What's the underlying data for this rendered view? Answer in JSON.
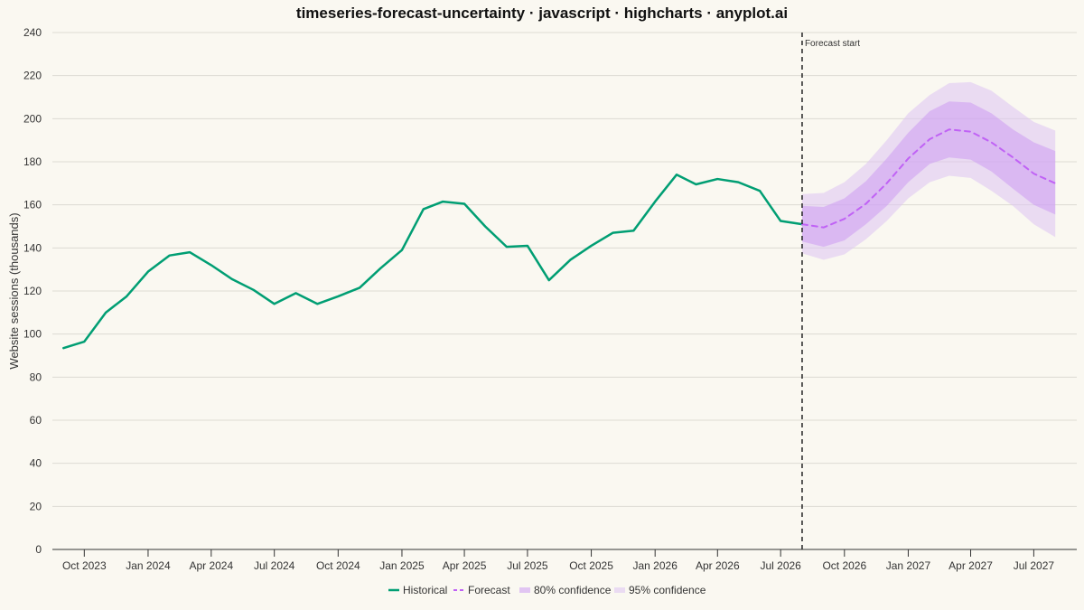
{
  "chart_data": {
    "type": "line",
    "title": "timeseries-forecast-uncertainty · javascript · highcharts · anyplot.ai",
    "ylabel": "Website sessions (thousands)",
    "xlabel": "",
    "ylim": [
      0,
      240
    ],
    "yticks": [
      0,
      20,
      40,
      60,
      80,
      100,
      120,
      140,
      160,
      180,
      200,
      220,
      240
    ],
    "x_start": "2023-09",
    "xlim": [
      "2023-08-16",
      "2027-09-01"
    ],
    "x_ticks": [
      {
        "date": "2023-10-01",
        "label": "Oct 2023"
      },
      {
        "date": "2024-01-01",
        "label": "Jan 2024"
      },
      {
        "date": "2024-04-01",
        "label": "Apr 2024"
      },
      {
        "date": "2024-07-01",
        "label": "Jul 2024"
      },
      {
        "date": "2024-10-01",
        "label": "Oct 2024"
      },
      {
        "date": "2025-01-01",
        "label": "Jan 2025"
      },
      {
        "date": "2025-04-01",
        "label": "Apr 2025"
      },
      {
        "date": "2025-07-01",
        "label": "Jul 2025"
      },
      {
        "date": "2025-10-01",
        "label": "Oct 2025"
      },
      {
        "date": "2026-01-01",
        "label": "Jan 2026"
      },
      {
        "date": "2026-04-01",
        "label": "Apr 2026"
      },
      {
        "date": "2026-07-01",
        "label": "Jul 2026"
      },
      {
        "date": "2026-10-01",
        "label": "Oct 2026"
      },
      {
        "date": "2027-01-01",
        "label": "Jan 2027"
      },
      {
        "date": "2027-04-01",
        "label": "Apr 2027"
      },
      {
        "date": "2027-07-01",
        "label": "Jul 2027"
      }
    ],
    "forecast_start": {
      "date": "2026-08-01",
      "label": "Forecast start"
    },
    "grid": true,
    "legend_position": "bottom-center",
    "series": [
      {
        "name": "Historical",
        "kind": "line",
        "color": "#009E73",
        "points": [
          [
            "2023-09-01",
            93.5
          ],
          [
            "2023-10-01",
            96.5
          ],
          [
            "2023-11-01",
            110
          ],
          [
            "2023-12-01",
            117.5
          ],
          [
            "2024-01-01",
            129
          ],
          [
            "2024-02-01",
            136.5
          ],
          [
            "2024-03-01",
            138
          ],
          [
            "2024-04-01",
            132
          ],
          [
            "2024-05-01",
            125.5
          ],
          [
            "2024-06-01",
            120.5
          ],
          [
            "2024-07-01",
            114
          ],
          [
            "2024-08-01",
            119
          ],
          [
            "2024-09-01",
            114
          ],
          [
            "2024-10-01",
            117.5
          ],
          [
            "2024-11-01",
            121.5
          ],
          [
            "2024-12-01",
            130.5
          ],
          [
            "2025-01-01",
            139
          ],
          [
            "2025-02-01",
            158
          ],
          [
            "2025-03-01",
            161.5
          ],
          [
            "2025-04-01",
            160.5
          ],
          [
            "2025-05-01",
            150
          ],
          [
            "2025-06-01",
            140.5
          ],
          [
            "2025-07-01",
            141
          ],
          [
            "2025-08-01",
            125
          ],
          [
            "2025-09-01",
            134.5
          ],
          [
            "2025-10-01",
            141
          ],
          [
            "2025-11-01",
            147
          ],
          [
            "2025-12-01",
            148
          ],
          [
            "2026-01-01",
            161.5
          ],
          [
            "2026-02-01",
            174
          ],
          [
            "2026-03-01",
            169.5
          ],
          [
            "2026-04-01",
            172
          ],
          [
            "2026-05-01",
            170.5
          ],
          [
            "2026-06-01",
            166.5
          ],
          [
            "2026-07-01",
            152.5
          ],
          [
            "2026-08-01",
            151
          ]
        ]
      },
      {
        "name": "Forecast",
        "kind": "dashed-line",
        "color": "#C062F5",
        "points": [
          [
            "2026-08-01",
            151
          ],
          [
            "2026-09-01",
            149.5
          ],
          [
            "2026-10-01",
            153.5
          ],
          [
            "2026-11-01",
            160.5
          ],
          [
            "2026-12-01",
            170
          ],
          [
            "2027-01-01",
            181.5
          ],
          [
            "2027-02-01",
            190.5
          ],
          [
            "2027-03-01",
            195
          ],
          [
            "2027-04-01",
            194
          ],
          [
            "2027-05-01",
            189
          ],
          [
            "2027-06-01",
            182
          ],
          [
            "2027-07-01",
            174.5
          ],
          [
            "2027-08-01",
            170
          ]
        ]
      },
      {
        "name": "80% confidence",
        "kind": "band",
        "color": "#CC9AF3",
        "opacity": 0.55,
        "dates": [
          "2026-08-01",
          "2026-09-01",
          "2026-10-01",
          "2026-11-01",
          "2026-12-01",
          "2027-01-01",
          "2027-02-01",
          "2027-03-01",
          "2027-04-01",
          "2027-05-01",
          "2027-06-01",
          "2027-07-01",
          "2027-08-01"
        ],
        "low": [
          143,
          140.5,
          143.5,
          151,
          159.5,
          170.5,
          179,
          182,
          181,
          175.5,
          167.5,
          160,
          155.5
        ],
        "high": [
          159.5,
          159,
          163,
          171,
          181.5,
          193.5,
          203.5,
          208,
          207.5,
          202.5,
          195,
          189,
          185
        ]
      },
      {
        "name": "95% confidence",
        "kind": "band",
        "color": "#DCC2F2",
        "opacity": 0.55,
        "dates": [
          "2026-08-01",
          "2026-09-01",
          "2026-10-01",
          "2026-11-01",
          "2026-12-01",
          "2027-01-01",
          "2027-02-01",
          "2027-03-01",
          "2027-04-01",
          "2027-05-01",
          "2027-06-01",
          "2027-07-01",
          "2027-08-01"
        ],
        "low": [
          137.5,
          134.5,
          137,
          144,
          152.5,
          163,
          170.5,
          173.5,
          172.5,
          166.5,
          159.5,
          151,
          145
        ],
        "high": [
          165,
          165.5,
          170.5,
          179,
          190,
          202.5,
          211,
          216.5,
          217,
          213,
          205.5,
          198.5,
          194.5
        ]
      }
    ]
  }
}
